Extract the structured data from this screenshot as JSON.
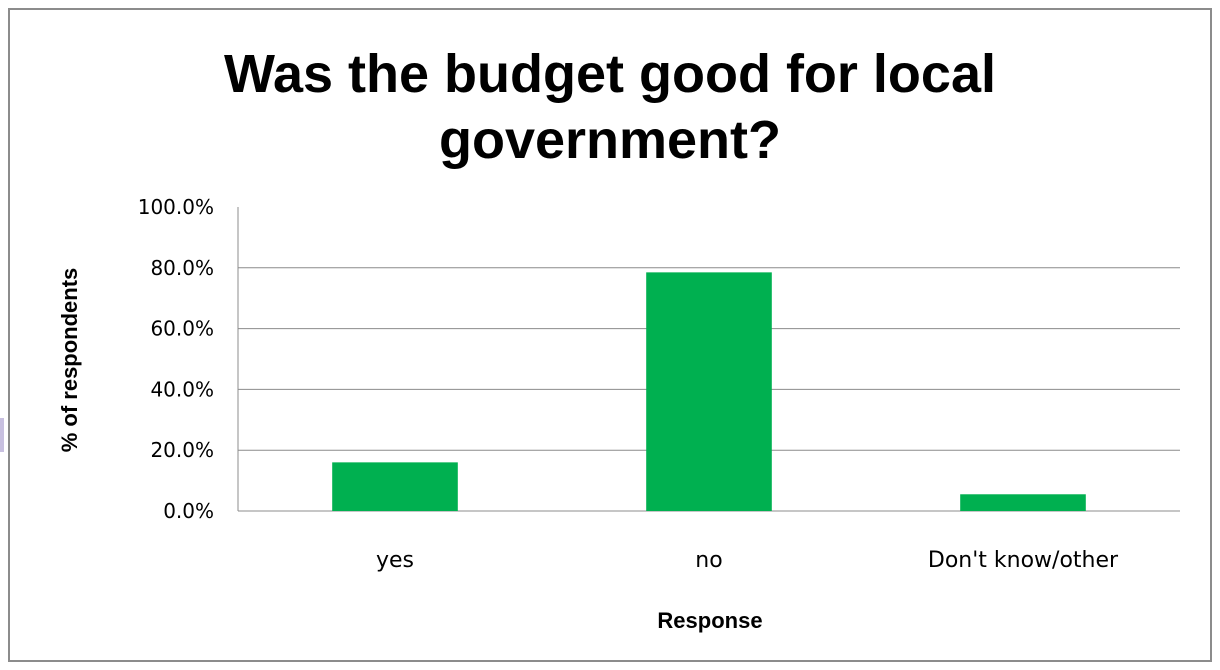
{
  "chart_data": {
    "type": "bar",
    "title_lines": [
      "Was the budget good for local",
      "government?"
    ],
    "categories": [
      "yes",
      "no",
      "Don't know/other"
    ],
    "values": [
      16.0,
      78.5,
      5.5
    ],
    "xlabel": "Response",
    "ylabel": "% of respondents",
    "ylim": [
      0,
      100
    ],
    "yticks": [
      0,
      20,
      40,
      60,
      80,
      100
    ],
    "ytick_labels": [
      "0.0%",
      "20.0%",
      "40.0%",
      "60.0%",
      "80.0%",
      "100.0%"
    ],
    "grid": true,
    "legend": "none",
    "bar_color": "#00b050",
    "grid_color": "#8c8c8c"
  }
}
